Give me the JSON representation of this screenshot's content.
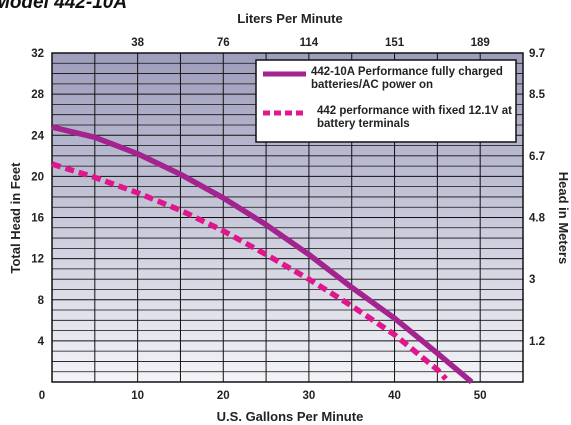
{
  "title": "Model 442-10A",
  "chart_data": {
    "type": "line",
    "title": "Model 442-10A",
    "xlabel": "U.S. Gallons Per Minute",
    "ylabel": "Total Head in Feet",
    "x2label": "Liters Per Minute",
    "y2label": "Head in Meters",
    "xlim": [
      0,
      55
    ],
    "ylim": [
      0,
      32
    ],
    "x_ticks": [
      "0",
      "10",
      "20",
      "30",
      "40",
      "50"
    ],
    "y_ticks": [
      "4",
      "8",
      "12",
      "16",
      "20",
      "24",
      "28",
      "32"
    ],
    "x2_ticks": [
      "38",
      "76",
      "114",
      "151",
      "189"
    ],
    "y2_ticks": [
      "1.2",
      "3",
      "4.8",
      "6.7",
      "8.5",
      "9.7"
    ],
    "grid": true,
    "legend_position": "top-right",
    "series": [
      {
        "name": "442-10A Performance fully charged batteries/AC power on",
        "style": "solid",
        "color": "#a3238f",
        "x": [
          0,
          5,
          10,
          15,
          20,
          25,
          30,
          35,
          40,
          45,
          49
        ],
        "y": [
          24.8,
          23.8,
          22.2,
          20.2,
          17.9,
          15.3,
          12.4,
          9.2,
          6.2,
          2.8,
          0
        ]
      },
      {
        "name": "442 performance with fixed 12.1V at battery terminals",
        "style": "dashed",
        "color": "#e0178c",
        "x": [
          0,
          5,
          10,
          15,
          20,
          25,
          30,
          35,
          40,
          45,
          46
        ],
        "y": [
          21.2,
          19.9,
          18.4,
          16.7,
          14.7,
          12.4,
          10.0,
          7.4,
          4.6,
          1.2,
          0.3
        ]
      }
    ]
  }
}
